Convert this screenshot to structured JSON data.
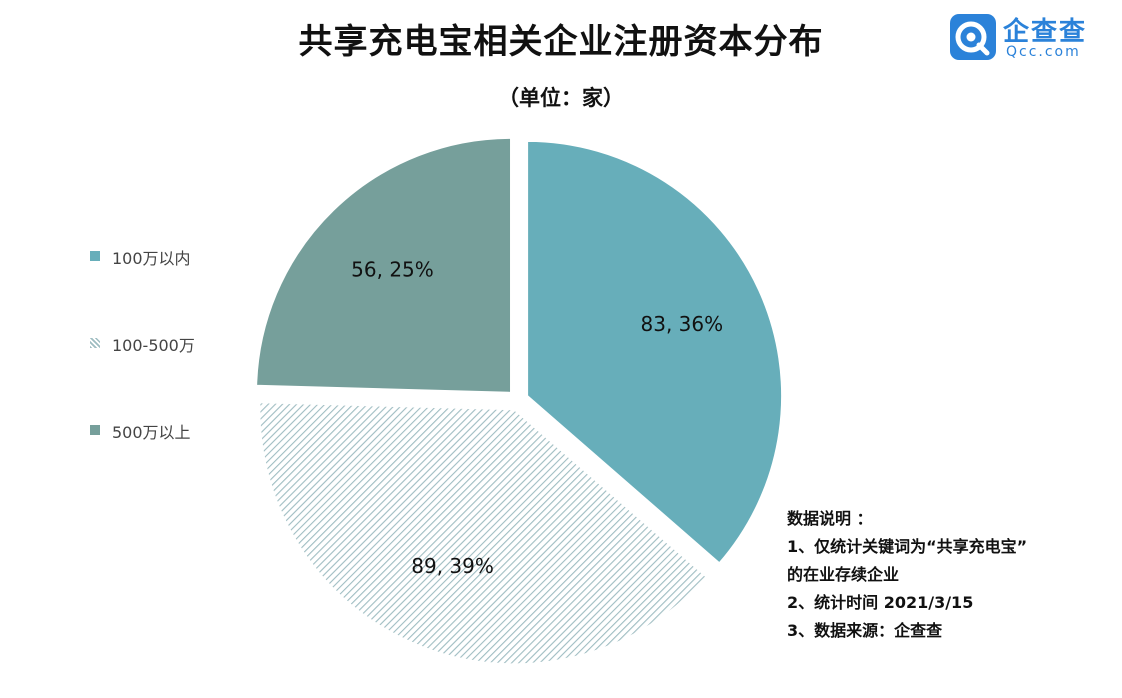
{
  "title": "共享充电宝相关企业注册资本分布",
  "subtitle": "（单位：家）",
  "logo": {
    "cn": "企查查",
    "en": "Qcc.com"
  },
  "chart_data": {
    "type": "pie",
    "title": "共享充电宝相关企业注册资本分布",
    "subtitle": "（单位：家）",
    "unit": "家",
    "legend_position": "left",
    "slices": [
      {
        "name": "100万以内",
        "value": 83,
        "percent": 36,
        "label": "83, 36%",
        "color": "#67aeba",
        "pattern": "solid",
        "exploded": true
      },
      {
        "name": "100-500万",
        "value": 89,
        "percent": 39,
        "label": "89, 39%",
        "color": "#9fbdc2",
        "pattern": "diagonal-hatch",
        "exploded": true
      },
      {
        "name": "500万以上",
        "value": 56,
        "percent": 25,
        "label": "56, 25%",
        "color": "#769f9b",
        "pattern": "solid",
        "exploded": true
      }
    ]
  },
  "notes": {
    "heading": "数据说明 ：",
    "lines": [
      "1、仅统计关键词为“共享充电宝”",
      "的在业存续企业",
      "2、统计时间 2021/3/15",
      "3、数据来源：企查查"
    ]
  }
}
